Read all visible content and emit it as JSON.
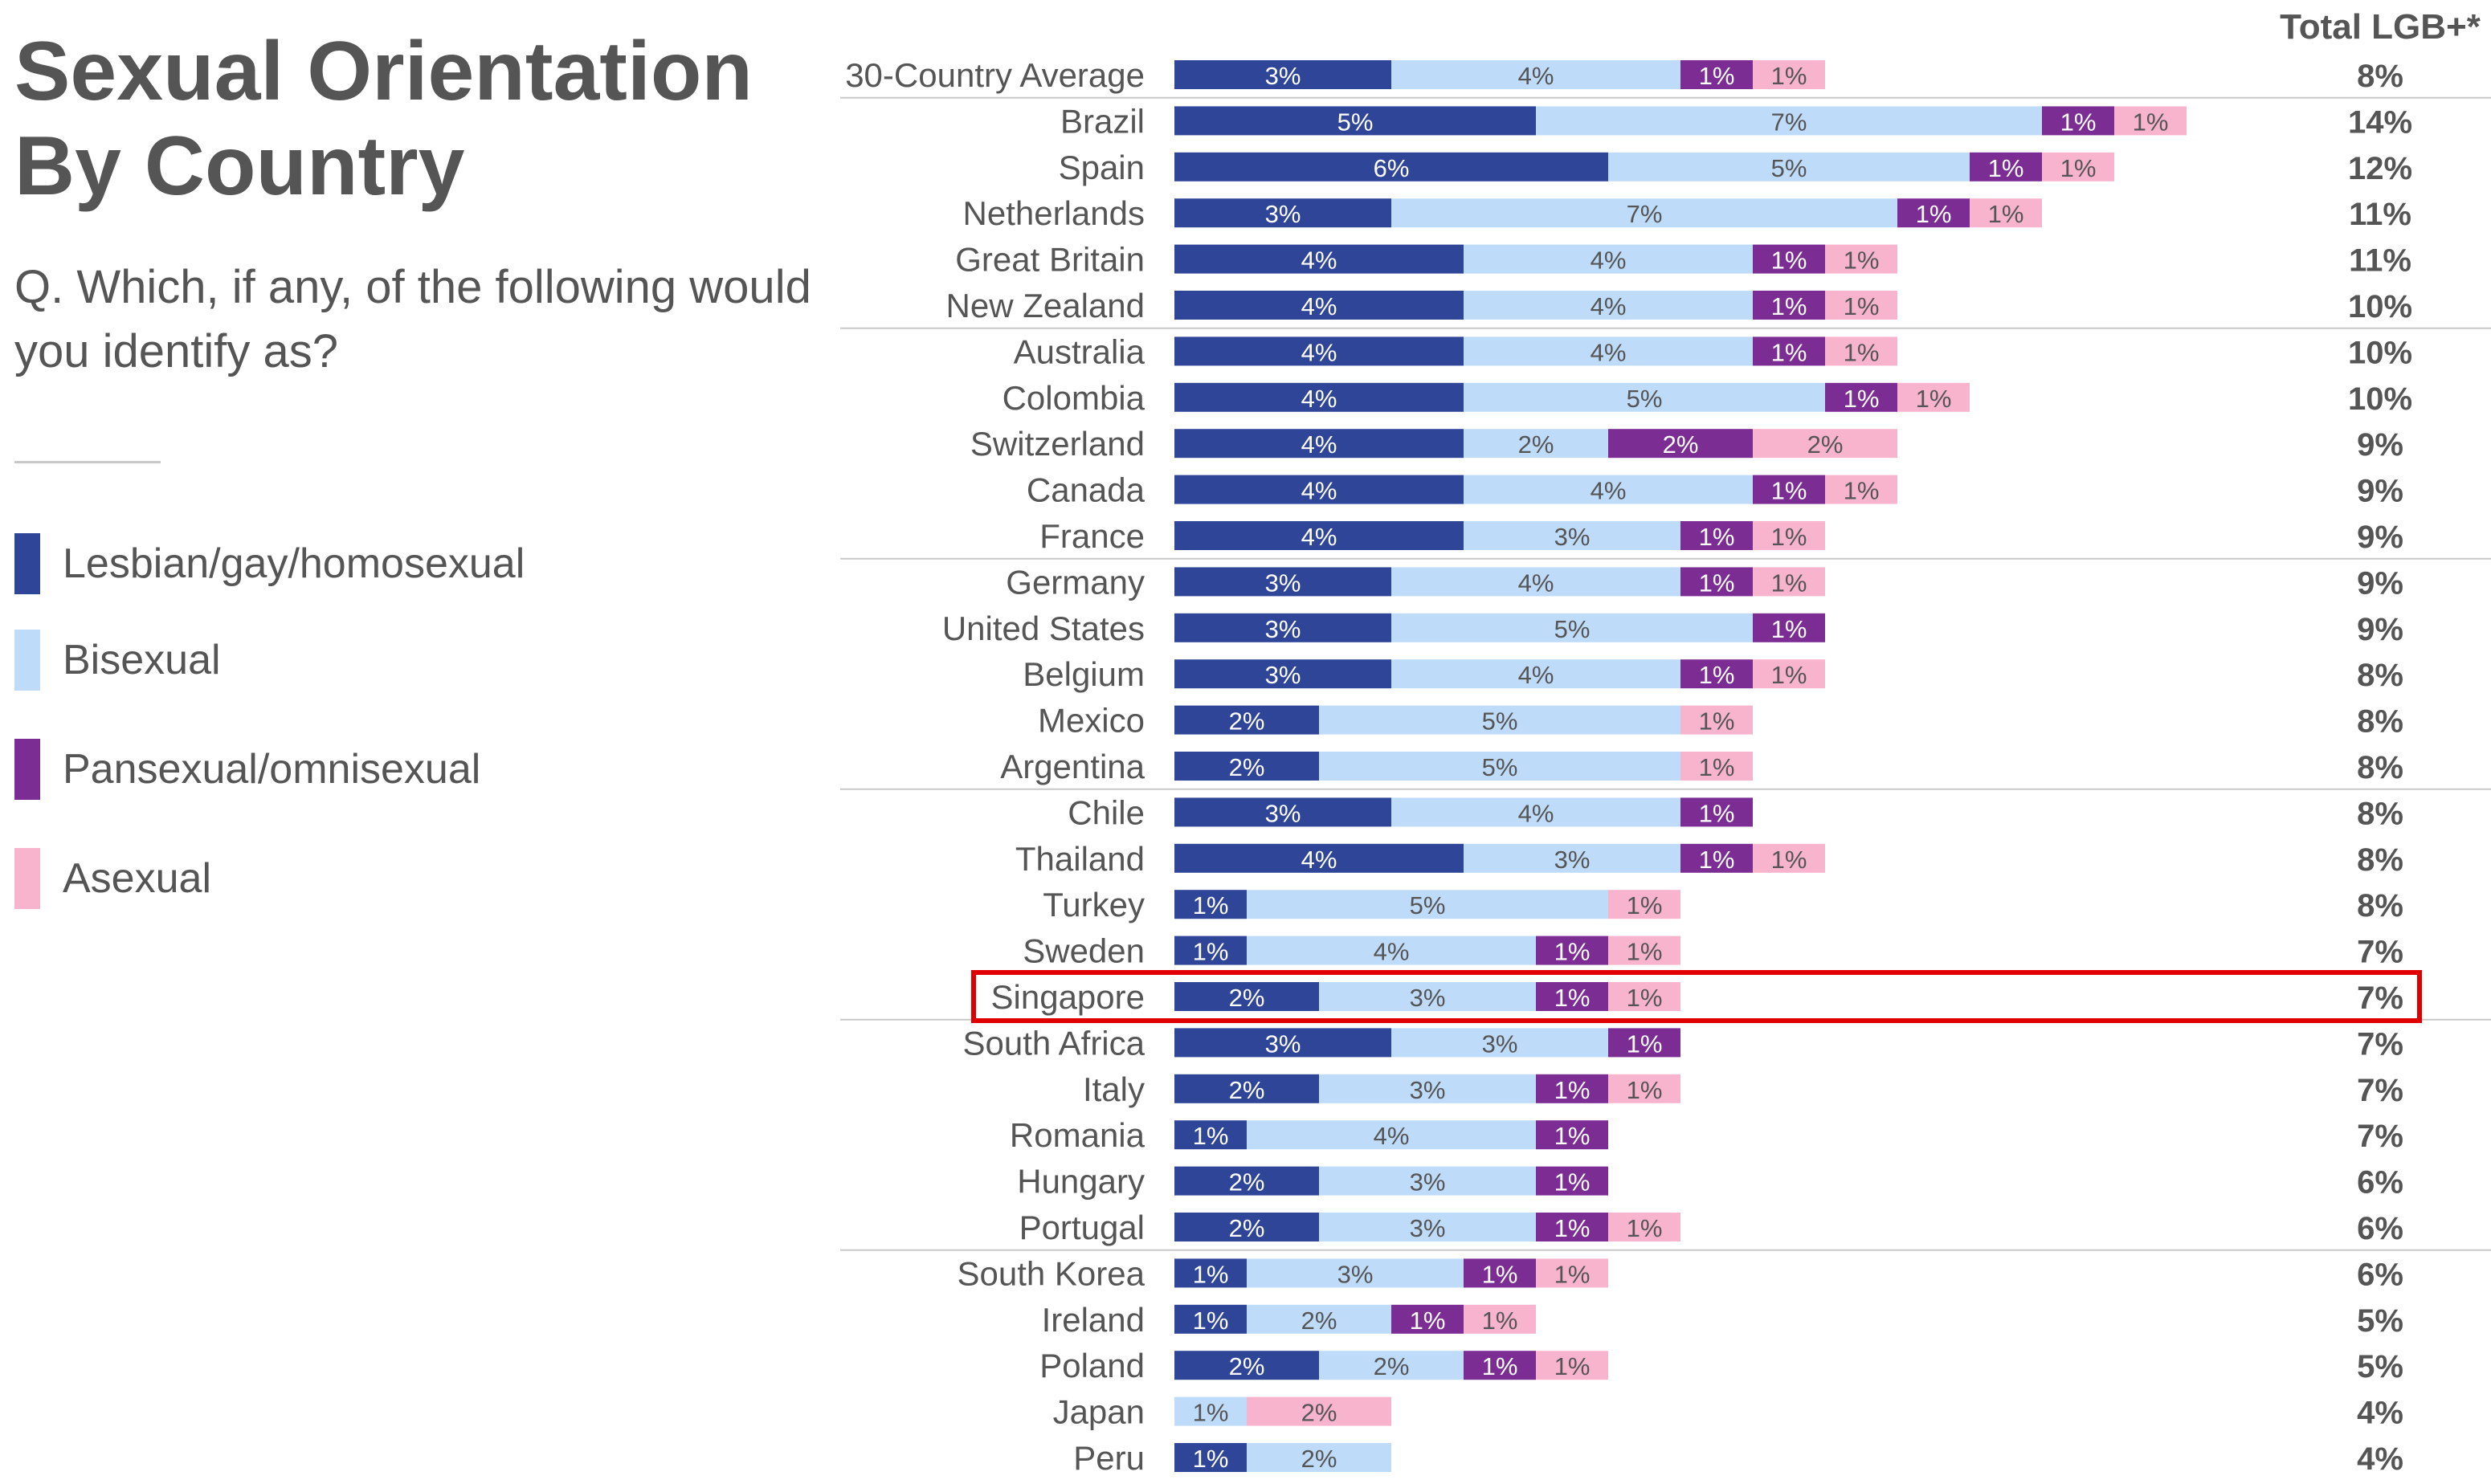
{
  "title_lines": [
    "Sexual Orientation",
    "By Country"
  ],
  "question": "Q. Which, if any, of the following would you identify as?",
  "colors": {
    "lesbian_gay_homosexual": "#2e4598",
    "bisexual": "#bfdbfa",
    "pansexual_omnisexual": "#7b2d94",
    "asexual": "#f8b3cd",
    "highlight": "#e00000"
  },
  "legend": [
    {
      "label": "Lesbian/gay/homosexual",
      "color": "#2e4598"
    },
    {
      "label": "Bisexual",
      "color": "#bfdbfa"
    },
    {
      "label": "Pansexual/omnisexual",
      "color": "#7b2d94"
    },
    {
      "label": "Asexual",
      "color": "#f8b3cd"
    }
  ],
  "chart_data": {
    "type": "bar",
    "orientation": "horizontal",
    "stacked": true,
    "total_column_header": "Total LGB+*",
    "highlighted_category": "Singapore",
    "categories": [
      "30-Country Average",
      "Brazil",
      "Spain",
      "Netherlands",
      "Great Britain",
      "New Zealand",
      "Australia",
      "Colombia",
      "Switzerland",
      "Canada",
      "France",
      "Germany",
      "United States",
      "Belgium",
      "Mexico",
      "Argentina",
      "Chile",
      "Thailand",
      "Turkey",
      "Sweden",
      "Singapore",
      "South Africa",
      "Italy",
      "Romania",
      "Hungary",
      "Portugal",
      "South Korea",
      "Ireland",
      "Poland",
      "Japan",
      "Peru"
    ],
    "series": [
      {
        "name": "Lesbian/gay/homosexual",
        "values": [
          3,
          5,
          6,
          3,
          4,
          4,
          4,
          4,
          4,
          4,
          4,
          3,
          3,
          3,
          2,
          2,
          3,
          4,
          1,
          1,
          2,
          3,
          2,
          1,
          2,
          2,
          1,
          1,
          2,
          null,
          1
        ]
      },
      {
        "name": "Bisexual",
        "values": [
          4,
          7,
          5,
          7,
          4,
          4,
          4,
          5,
          2,
          4,
          3,
          4,
          5,
          4,
          5,
          5,
          4,
          3,
          5,
          4,
          3,
          3,
          3,
          4,
          3,
          3,
          3,
          2,
          2,
          1,
          2
        ]
      },
      {
        "name": "Pansexual/omnisexual",
        "values": [
          1,
          1,
          1,
          1,
          1,
          1,
          1,
          1,
          2,
          1,
          1,
          1,
          1,
          1,
          null,
          null,
          1,
          1,
          null,
          1,
          1,
          1,
          1,
          1,
          1,
          1,
          1,
          1,
          1,
          null,
          null
        ]
      },
      {
        "name": "Asexual",
        "values": [
          1,
          1,
          1,
          1,
          1,
          1,
          1,
          1,
          2,
          1,
          1,
          1,
          null,
          1,
          1,
          1,
          null,
          1,
          1,
          1,
          1,
          null,
          1,
          null,
          null,
          1,
          1,
          1,
          1,
          2,
          null
        ]
      }
    ],
    "totals": [
      "8%",
      "14%",
      "12%",
      "11%",
      "11%",
      "10%",
      "10%",
      "10%",
      "9%",
      "9%",
      "9%",
      "9%",
      "9%",
      "8%",
      "8%",
      "8%",
      "8%",
      "8%",
      "8%",
      "7%",
      "7%",
      "7%",
      "7%",
      "7%",
      "6%",
      "6%",
      "6%",
      "5%",
      "5%",
      "4%",
      "4%"
    ],
    "value_suffix": "%",
    "group_separators_after": [
      "30-Country Average",
      "New Zealand",
      "France",
      "Argentina",
      "Singapore",
      "Portugal"
    ]
  }
}
